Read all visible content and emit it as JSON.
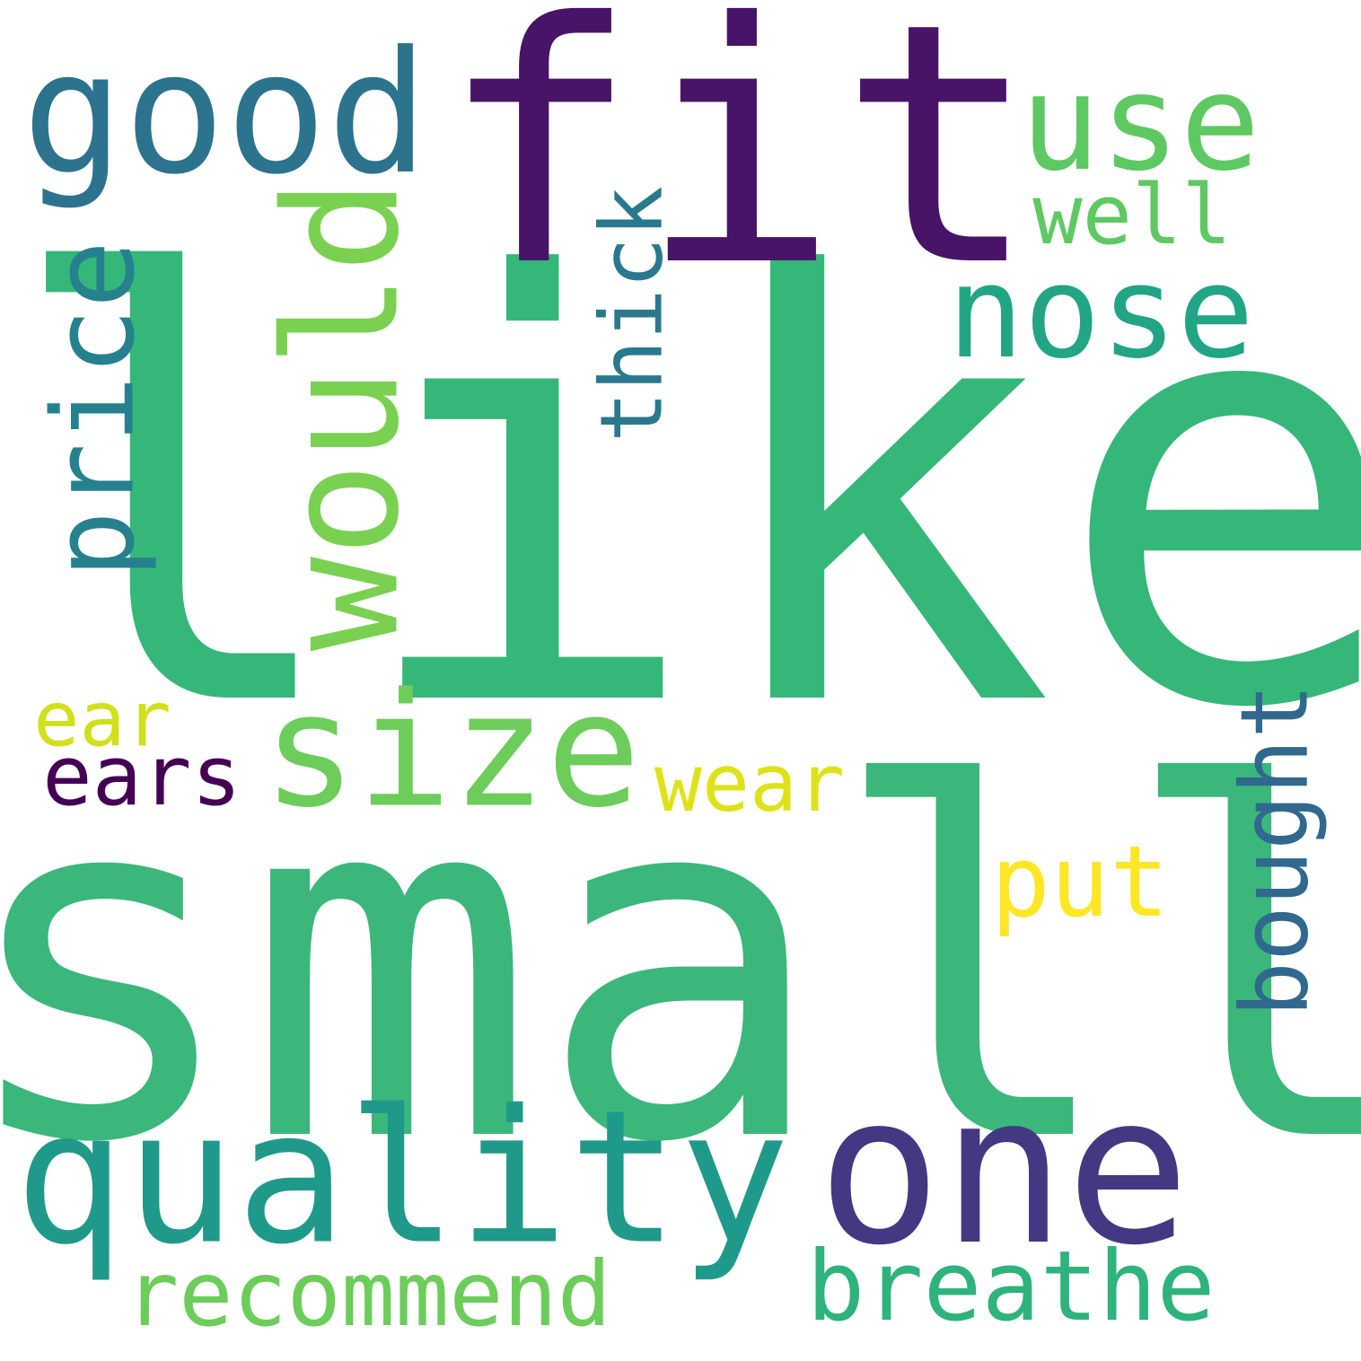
{
  "words": {
    "like": {
      "text": "like",
      "color": "#35b779",
      "rotated": false
    },
    "small": {
      "text": "small",
      "color": "#3bb77b",
      "rotated": false
    },
    "fit": {
      "text": "fit",
      "color": "#481467",
      "rotated": false
    },
    "one": {
      "text": "one",
      "color": "#433983",
      "rotated": false
    },
    "quality": {
      "text": "quality",
      "color": "#1f9a8a",
      "rotated": false
    },
    "size": {
      "text": "size",
      "color": "#6ccd5a",
      "rotated": false
    },
    "good": {
      "text": "good",
      "color": "#2c738e",
      "rotated": false
    },
    "use": {
      "text": "use",
      "color": "#5ec962",
      "rotated": false
    },
    "would": {
      "text": "would",
      "color": "#7ad151",
      "rotated": true
    },
    "nose": {
      "text": "nose",
      "color": "#21a585",
      "rotated": false
    },
    "price": {
      "text": "price",
      "color": "#26818e",
      "rotated": true
    },
    "breathe": {
      "text": "breathe",
      "color": "#2eb37c",
      "rotated": false
    },
    "recommend": {
      "text": "recommend",
      "color": "#6ccd5a",
      "rotated": false
    },
    "bought": {
      "text": "bought",
      "color": "#31688e",
      "rotated": true
    },
    "well": {
      "text": "well",
      "color": "#5ec962",
      "rotated": false
    },
    "thick": {
      "text": "thick",
      "color": "#2a788e",
      "rotated": true
    },
    "ears": {
      "text": "ears",
      "color": "#440154",
      "rotated": false
    },
    "ear": {
      "text": "ear",
      "color": "#d0e11c",
      "rotated": false
    },
    "wear": {
      "text": "wear",
      "color": "#dde318",
      "rotated": false
    },
    "put": {
      "text": "put",
      "color": "#fde725",
      "rotated": false
    }
  }
}
